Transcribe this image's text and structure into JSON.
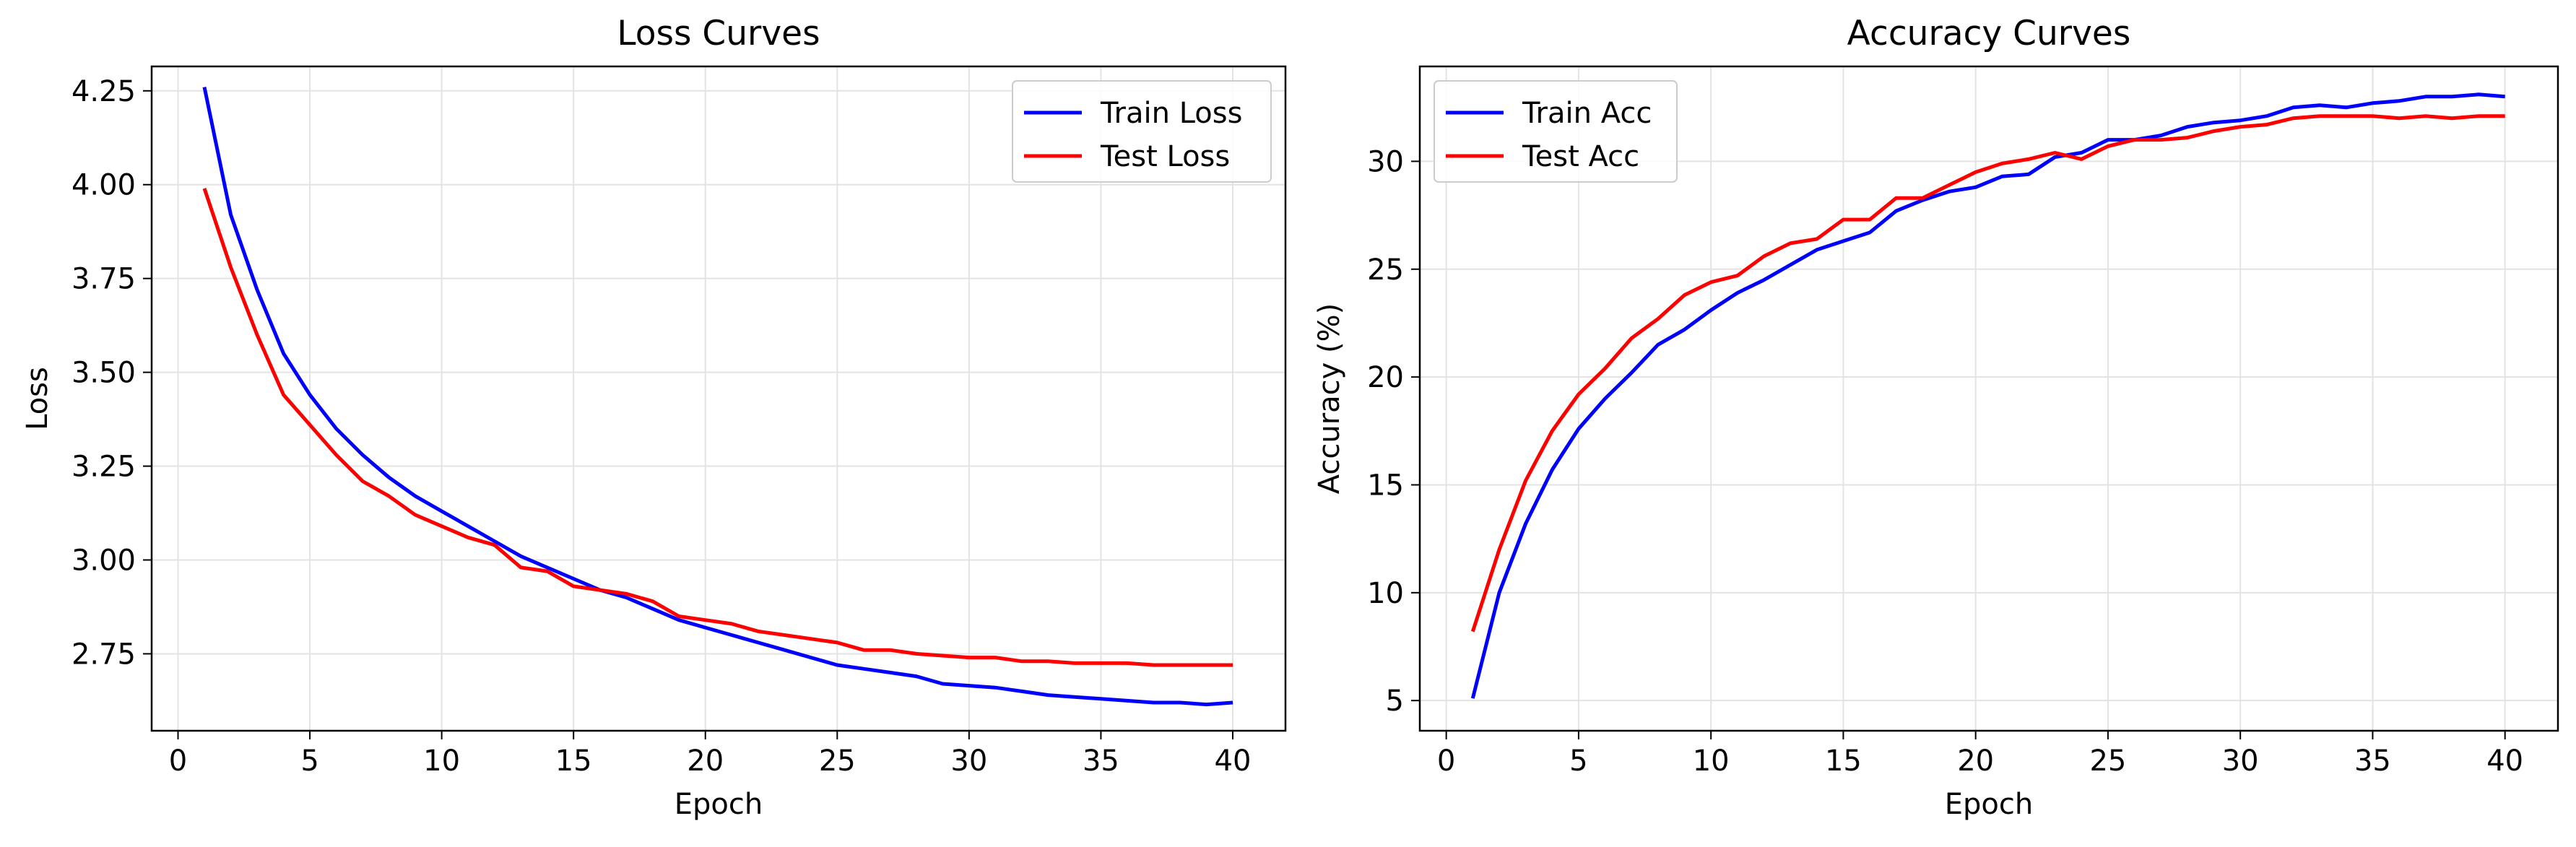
{
  "colors": {
    "train": "#0000ff",
    "test": "#ff0000",
    "grid": "#e3e3e3",
    "frame": "#000000"
  },
  "chart_data": [
    {
      "type": "line",
      "title": "Loss Curves",
      "xlabel": "Epoch",
      "ylabel": "Loss",
      "xlim": [
        -1,
        42
      ],
      "ylim": [
        2.545,
        4.315
      ],
      "xticks": [
        0,
        5,
        10,
        15,
        20,
        25,
        30,
        35,
        40
      ],
      "yticks": [
        2.75,
        3.0,
        3.25,
        3.5,
        3.75,
        4.0,
        4.25
      ],
      "ytick_labels": [
        "2.75",
        "3.00",
        "3.25",
        "3.50",
        "3.75",
        "4.00",
        "4.25"
      ],
      "xtick_labels": [
        "0",
        "5",
        "10",
        "15",
        "20",
        "25",
        "30",
        "35",
        "40"
      ],
      "grid": true,
      "legend": "top-right",
      "x": [
        1,
        2,
        3,
        4,
        5,
        6,
        7,
        8,
        9,
        10,
        11,
        12,
        13,
        14,
        15,
        16,
        17,
        18,
        19,
        20,
        21,
        22,
        23,
        24,
        25,
        26,
        27,
        28,
        29,
        30,
        31,
        32,
        33,
        34,
        35,
        36,
        37,
        38,
        39,
        40
      ],
      "series": [
        {
          "name": "Train Loss",
          "color": "#0000ff",
          "values": [
            4.26,
            3.92,
            3.72,
            3.55,
            3.44,
            3.35,
            3.28,
            3.22,
            3.17,
            3.13,
            3.09,
            3.05,
            3.01,
            2.98,
            2.95,
            2.92,
            2.9,
            2.87,
            2.84,
            2.82,
            2.8,
            2.78,
            2.76,
            2.74,
            2.72,
            2.71,
            2.7,
            2.69,
            2.67,
            2.665,
            2.66,
            2.65,
            2.64,
            2.635,
            2.63,
            2.625,
            2.62,
            2.62,
            2.615,
            2.62
          ]
        },
        {
          "name": "Test Loss",
          "color": "#ff0000",
          "values": [
            3.99,
            3.78,
            3.6,
            3.44,
            3.36,
            3.28,
            3.21,
            3.17,
            3.12,
            3.09,
            3.06,
            3.04,
            2.98,
            2.97,
            2.93,
            2.92,
            2.91,
            2.89,
            2.85,
            2.84,
            2.83,
            2.81,
            2.8,
            2.79,
            2.78,
            2.76,
            2.76,
            2.75,
            2.745,
            2.74,
            2.74,
            2.73,
            2.73,
            2.725,
            2.725,
            2.725,
            2.72,
            2.72,
            2.72,
            2.72
          ]
        }
      ]
    },
    {
      "type": "line",
      "title": "Accuracy Curves",
      "xlabel": "Epoch",
      "ylabel": "Accuracy (%)",
      "xlim": [
        -1,
        42
      ],
      "ylim": [
        3.6,
        34.4
      ],
      "xticks": [
        0,
        5,
        10,
        15,
        20,
        25,
        30,
        35,
        40
      ],
      "yticks": [
        5,
        10,
        15,
        20,
        25,
        30
      ],
      "ytick_labels": [
        "5",
        "10",
        "15",
        "20",
        "25",
        "30"
      ],
      "xtick_labels": [
        "0",
        "5",
        "10",
        "15",
        "20",
        "25",
        "30",
        "35",
        "40"
      ],
      "grid": true,
      "legend": "top-left",
      "x": [
        1,
        2,
        3,
        4,
        5,
        6,
        7,
        8,
        9,
        10,
        11,
        12,
        13,
        14,
        15,
        16,
        17,
        18,
        19,
        20,
        21,
        22,
        23,
        24,
        25,
        26,
        27,
        28,
        29,
        30,
        31,
        32,
        33,
        34,
        35,
        36,
        37,
        38,
        39,
        40
      ],
      "series": [
        {
          "name": "Train Acc",
          "color": "#0000ff",
          "values": [
            5.1,
            10.0,
            13.2,
            15.7,
            17.6,
            19.0,
            20.2,
            21.5,
            22.2,
            23.1,
            23.9,
            24.5,
            25.2,
            25.9,
            26.3,
            26.7,
            27.7,
            28.2,
            28.6,
            28.8,
            29.3,
            29.4,
            30.2,
            30.4,
            31.0,
            31.0,
            31.2,
            31.6,
            31.8,
            31.9,
            32.1,
            32.5,
            32.6,
            32.5,
            32.7,
            32.8,
            33.0,
            33.0,
            33.1,
            33.0
          ]
        },
        {
          "name": "Test Acc",
          "color": "#ff0000",
          "values": [
            8.2,
            12.0,
            15.2,
            17.5,
            19.2,
            20.4,
            21.8,
            22.7,
            23.8,
            24.4,
            24.7,
            25.6,
            26.2,
            26.4,
            27.3,
            27.3,
            28.3,
            28.3,
            28.9,
            29.5,
            29.9,
            30.1,
            30.4,
            30.1,
            30.7,
            31.0,
            31.0,
            31.1,
            31.4,
            31.6,
            31.7,
            32.0,
            32.1,
            32.1,
            32.1,
            32.0,
            32.1,
            32.0,
            32.1,
            32.1
          ]
        }
      ]
    }
  ]
}
